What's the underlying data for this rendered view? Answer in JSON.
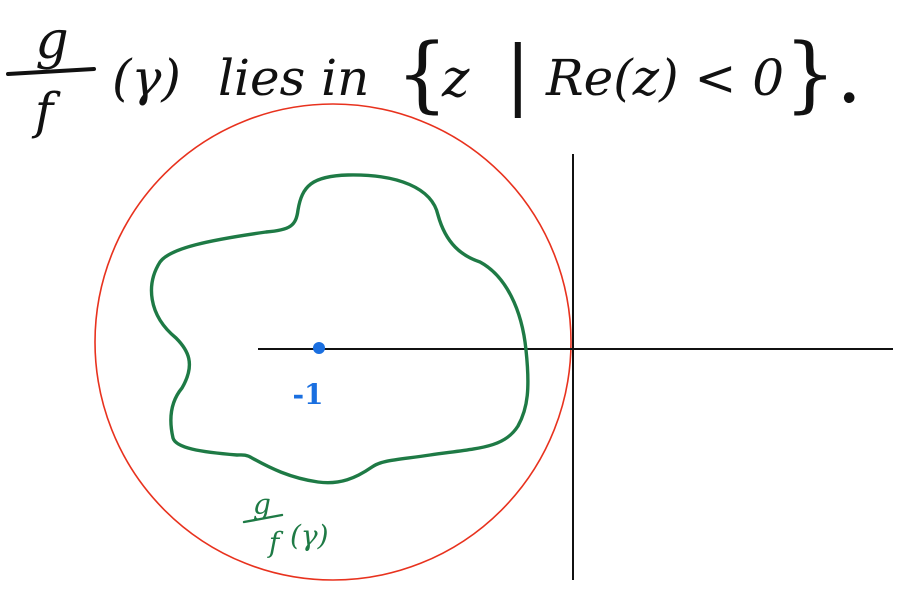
{
  "heading": {
    "fraction_numerator": "g",
    "fraction_denominator": "f",
    "argument": "(γ)",
    "verb": "lies in",
    "set_open": "{",
    "set_var": "z",
    "set_bar": "|",
    "set_condition": "Re(z) < 0",
    "set_close": "}."
  },
  "point_label": "-1",
  "curve_label": {
    "numerator": "g",
    "denominator": "f",
    "argument": "(γ)"
  },
  "colors": {
    "ink": "#111111",
    "circle": "#e8321e",
    "curve": "#1e7a45",
    "point": "#1a6fe0"
  }
}
